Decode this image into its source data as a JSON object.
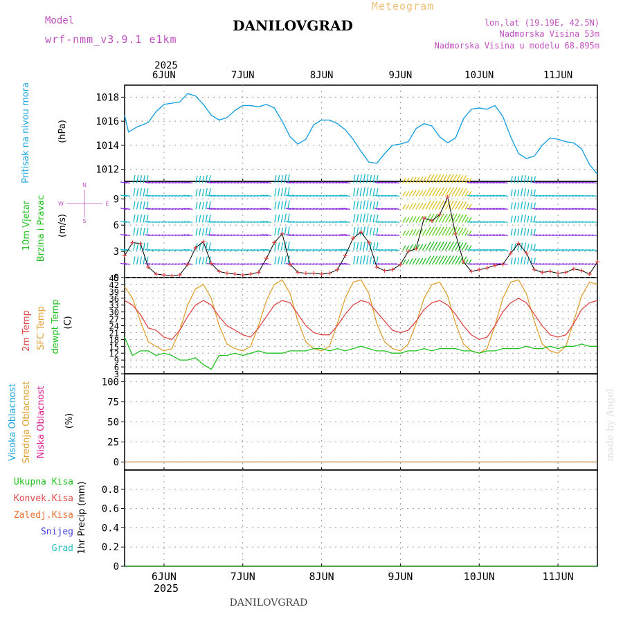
{
  "header": {
    "model_label": "Model",
    "model_name": "wrf-nmm_v3.9.1 e1km",
    "meteogram_label": "Meteogram",
    "station": "DANILOVGRAD",
    "lonlat": "lon,lat (19.19E, 42.5N)",
    "elevation": "Nadmorska Visina 53m",
    "model_elevation": "Nadmorska Visina u modelu 68.895m",
    "footer_station": "DANILOVGRAD",
    "watermark": "made by Angel"
  },
  "colors": {
    "pressure": "#1aa0e0",
    "temp2m": "#e04848",
    "sfc": "#e0a030",
    "dew": "#20c020",
    "wind_green": "#22bb22",
    "barb_cyan": "#18b8c8",
    "barb_violet": "#8a2be2",
    "magenta": "#c050c0"
  },
  "chart_data": [
    {
      "type": "line",
      "panel": "pressure",
      "ylabel_main": "Pritisak na nivou mora",
      "ylabel_unit": "(hPa)",
      "x_ticks": [
        "6JUN",
        "7JUN",
        "8JUN",
        "9JUN",
        "10JUN",
        "11JUN"
      ],
      "x_year": "2025",
      "ylim": [
        1011,
        1019
      ],
      "yticks": [
        1012,
        1014,
        1016,
        1018
      ],
      "x_start_days": -0.5,
      "x_end_days": 5.5,
      "series": [
        {
          "x": [
            -0.5,
            -0.45,
            -0.35,
            -0.2,
            -0.1,
            0,
            0.1,
            0.2,
            0.3,
            0.4,
            0.5,
            0.6,
            0.7,
            0.8,
            0.9,
            1.0,
            1.1,
            1.2,
            1.3,
            1.4,
            1.5,
            1.6,
            1.7,
            1.8,
            1.9,
            2.0,
            2.1,
            2.2,
            2.3,
            2.4,
            2.5,
            2.6,
            2.7,
            2.8,
            2.9,
            3.0,
            3.1,
            3.2,
            3.3,
            3.4,
            3.5,
            3.6,
            3.7,
            3.8,
            3.9,
            4.0,
            4.1,
            4.2,
            4.3,
            4.4,
            4.5,
            4.6,
            4.7,
            4.8,
            4.9,
            5.0,
            5.1,
            5.2,
            5.3,
            5.4,
            5.5
          ],
          "y": [
            1016.5,
            1015.1,
            1015.5,
            1015.9,
            1016.8,
            1017.4,
            1017.5,
            1017.6,
            1018.3,
            1018.1,
            1017.4,
            1016.5,
            1016.1,
            1016.3,
            1016.9,
            1017.3,
            1017.3,
            1017.2,
            1017.4,
            1017.1,
            1016.0,
            1014.7,
            1014.1,
            1014.5,
            1015.7,
            1016.1,
            1016.1,
            1015.8,
            1015.3,
            1014.5,
            1013.5,
            1012.6,
            1012.5,
            1013.3,
            1014.0,
            1014.1,
            1014.3,
            1015.4,
            1015.8,
            1015.6,
            1014.7,
            1014.2,
            1014.6,
            1016.2,
            1017.0,
            1017.1,
            1017.0,
            1017.3,
            1016.4,
            1014.7,
            1013.3,
            1012.9,
            1013.1,
            1014.0,
            1014.6,
            1014.5,
            1014.3,
            1014.2,
            1013.7,
            1012.4,
            1011.6
          ]
        }
      ]
    },
    {
      "type": "line",
      "panel": "wind",
      "ylabel_main": "10m Vjetar",
      "ylabel_sub": "Brzina i Pravac",
      "ylabel_unit": "(m/s)",
      "compass": {
        "n": "N",
        "s": "S",
        "e": "E",
        "w": "W"
      },
      "ylim": [
        0,
        11
      ],
      "yticks": [
        0,
        3,
        6,
        9
      ],
      "barb_rows": [
        10.8,
        9.3,
        7.8,
        6.3,
        4.8,
        3.1,
        1.5
      ],
      "series": [
        {
          "name": "wind-speed",
          "x": [
            -0.5,
            -0.4,
            -0.3,
            -0.2,
            -0.1,
            0,
            0.1,
            0.2,
            0.3,
            0.4,
            0.5,
            0.6,
            0.7,
            0.8,
            0.9,
            1.0,
            1.1,
            1.2,
            1.3,
            1.4,
            1.5,
            1.6,
            1.7,
            1.8,
            1.9,
            2.0,
            2.1,
            2.2,
            2.3,
            2.4,
            2.5,
            2.6,
            2.7,
            2.8,
            2.9,
            3.0,
            3.1,
            3.2,
            3.3,
            3.4,
            3.5,
            3.6,
            3.7,
            3.8,
            3.9,
            4.0,
            4.1,
            4.2,
            4.3,
            4.4,
            4.5,
            4.6,
            4.7,
            4.8,
            4.9,
            5.0,
            5.1,
            5.2,
            5.3,
            5.4,
            5.5
          ],
          "y": [
            2.5,
            4.0,
            3.9,
            1.2,
            0.4,
            0.3,
            0.2,
            0.3,
            1.5,
            3.4,
            4.1,
            1.6,
            0.7,
            0.5,
            0.4,
            0.3,
            0.4,
            0.6,
            2.2,
            4.0,
            5.0,
            1.5,
            0.6,
            0.5,
            0.5,
            0.4,
            0.5,
            0.9,
            2.5,
            4.5,
            5.2,
            4.0,
            1.2,
            0.8,
            0.9,
            1.5,
            3.0,
            3.3,
            6.8,
            6.5,
            7.2,
            9.2,
            5.0,
            1.8,
            0.7,
            0.9,
            1.1,
            1.4,
            1.5,
            2.8,
            3.9,
            2.8,
            0.9,
            0.6,
            0.7,
            0.5,
            0.6,
            1.0,
            0.8,
            0.4,
            1.8
          ]
        }
      ]
    },
    {
      "type": "line",
      "panel": "temperature",
      "ylabel_2m": "2m Temp",
      "ylabel_sfc": "SFC Temp",
      "ylabel_dew": "dewpt Temp",
      "ylabel_unit": "(C)",
      "ylim": [
        3,
        45
      ],
      "yticks": [
        3,
        6,
        9,
        12,
        15,
        18,
        21,
        24,
        27,
        30,
        33,
        36,
        39,
        42,
        45
      ],
      "series": [
        {
          "name": "2m Temp",
          "x": [
            -0.5,
            -0.4,
            -0.3,
            -0.2,
            -0.1,
            0,
            0.1,
            0.2,
            0.3,
            0.4,
            0.5,
            0.6,
            0.7,
            0.8,
            0.9,
            1.0,
            1.1,
            1.2,
            1.3,
            1.4,
            1.5,
            1.6,
            1.7,
            1.8,
            1.9,
            2.0,
            2.1,
            2.2,
            2.3,
            2.4,
            2.5,
            2.6,
            2.7,
            2.8,
            2.9,
            3.0,
            3.1,
            3.2,
            3.3,
            3.4,
            3.5,
            3.6,
            3.7,
            3.8,
            3.9,
            4.0,
            4.1,
            4.2,
            4.3,
            4.4,
            4.5,
            4.6,
            4.7,
            4.8,
            4.9,
            5.0,
            5.1,
            5.2,
            5.3,
            5.4,
            5.5
          ],
          "y": [
            35,
            33,
            29,
            23,
            22,
            19,
            18,
            22,
            28,
            33,
            35,
            33,
            28,
            24,
            22,
            20,
            19,
            23,
            28,
            33,
            35,
            34,
            29,
            24,
            21,
            20,
            20,
            24,
            29,
            33,
            35,
            34,
            30,
            26,
            22,
            21,
            22,
            26,
            31,
            34,
            35,
            33,
            29,
            24,
            20,
            18,
            19,
            24,
            30,
            34,
            36,
            34,
            29,
            24,
            20,
            19,
            20,
            25,
            31,
            34,
            35
          ]
        },
        {
          "name": "SFC Temp",
          "x": [
            -0.5,
            -0.4,
            -0.3,
            -0.2,
            -0.1,
            0,
            0.1,
            0.2,
            0.3,
            0.4,
            0.5,
            0.6,
            0.7,
            0.8,
            0.9,
            1.0,
            1.1,
            1.2,
            1.3,
            1.4,
            1.5,
            1.6,
            1.7,
            1.8,
            1.9,
            2.0,
            2.1,
            2.2,
            2.3,
            2.4,
            2.5,
            2.6,
            2.7,
            2.8,
            2.9,
            3.0,
            3.1,
            3.2,
            3.3,
            3.4,
            3.5,
            3.6,
            3.7,
            3.8,
            3.9,
            4.0,
            4.1,
            4.2,
            4.3,
            4.4,
            4.5,
            4.6,
            4.7,
            4.8,
            4.9,
            5.0,
            5.1,
            5.2,
            5.3,
            5.4,
            5.5
          ],
          "y": [
            41,
            36,
            26,
            17,
            15,
            13,
            14,
            22,
            33,
            40,
            42,
            36,
            24,
            16,
            14,
            13,
            15,
            24,
            35,
            42,
            44,
            38,
            26,
            17,
            14,
            13,
            15,
            25,
            36,
            43,
            44,
            38,
            25,
            17,
            14,
            13,
            16,
            25,
            36,
            42,
            43,
            37,
            25,
            16,
            13,
            12,
            14,
            24,
            36,
            43,
            44,
            38,
            26,
            16,
            13,
            12,
            15,
            26,
            37,
            43,
            42
          ]
        },
        {
          "name": "dewpt Temp",
          "x": [
            -0.5,
            -0.4,
            -0.3,
            -0.2,
            -0.1,
            0,
            0.1,
            0.2,
            0.3,
            0.4,
            0.5,
            0.6,
            0.7,
            0.8,
            0.9,
            1.0,
            1.1,
            1.2,
            1.3,
            1.4,
            1.5,
            1.6,
            1.7,
            1.8,
            1.9,
            2.0,
            2.1,
            2.2,
            2.3,
            2.4,
            2.5,
            2.6,
            2.7,
            2.8,
            2.9,
            3.0,
            3.1,
            3.2,
            3.3,
            3.4,
            3.5,
            3.6,
            3.7,
            3.8,
            3.9,
            4.0,
            4.1,
            4.2,
            4.3,
            4.4,
            4.5,
            4.6,
            4.7,
            4.8,
            4.9,
            5.0,
            5.1,
            5.2,
            5.3,
            5.4,
            5.5
          ],
          "y": [
            19,
            11,
            13,
            13,
            11,
            12,
            11,
            9,
            9,
            10,
            7,
            5,
            11,
            11,
            12,
            11,
            12,
            13,
            12,
            12,
            12,
            13,
            13,
            13,
            14,
            14,
            13,
            14,
            13,
            14,
            15,
            14,
            13,
            13,
            12,
            12,
            13,
            13,
            14,
            13,
            14,
            14,
            14,
            13,
            13,
            12,
            13,
            13,
            14,
            14,
            14,
            15,
            14,
            14,
            15,
            14,
            15,
            15,
            16,
            15,
            15
          ]
        }
      ]
    },
    {
      "type": "line",
      "panel": "cloud",
      "ylabel_high": "Visoka Oblacnost",
      "ylabel_mid": "Srednja Oblacnost",
      "ylabel_low": "Niska Oblacnost",
      "ylabel_unit": "(%)",
      "ylim": [
        -10,
        110
      ],
      "yticks": [
        0,
        25,
        50,
        75,
        100
      ],
      "series": [
        {
          "name": "Visoka Oblacnost",
          "x": [
            -0.5,
            5.5
          ],
          "y": [
            0,
            0
          ]
        },
        {
          "name": "Srednja Oblacnost",
          "x": [
            -0.5,
            5.5
          ],
          "y": [
            0,
            0
          ]
        },
        {
          "name": "Niska Oblacnost",
          "x": [
            -0.5,
            5.5
          ],
          "y": [
            0,
            0
          ]
        }
      ]
    },
    {
      "type": "line",
      "panel": "precip",
      "ylabel_unit": "1hr Precip (mm)",
      "legend": [
        {
          "label": "Ukupna Kisa",
          "color": "#20c020"
        },
        {
          "label": "Konvek.Kisa",
          "color": "#e04848"
        },
        {
          "label": "Zaledj.Kisa",
          "color": "#f07030"
        },
        {
          "label": "Snijeg",
          "color": "#4040e0"
        },
        {
          "label": "Grad",
          "color": "#20c0c0"
        }
      ],
      "ylim": [
        0,
        1.0
      ],
      "yticks": [
        "0",
        "0.2",
        "0.4",
        "0.6",
        "0.8"
      ],
      "series": [
        {
          "name": "Ukupna Kisa",
          "x": [
            -0.5,
            5.5
          ],
          "y": [
            0,
            0
          ]
        }
      ]
    }
  ]
}
